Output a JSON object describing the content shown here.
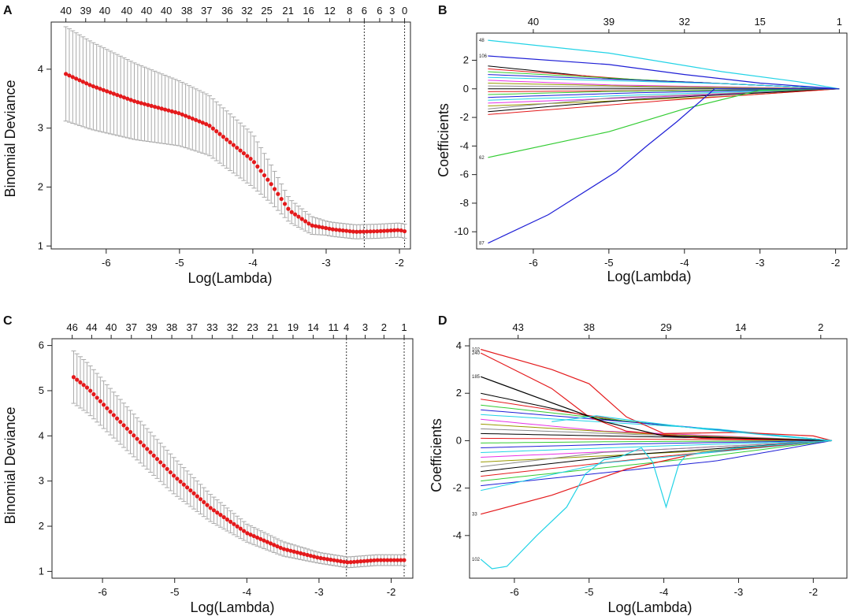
{
  "figure": {
    "colors": {
      "points": "#e41a1c",
      "errorbars": "#aaaaaa",
      "axis": "#222222",
      "path_palette": [
        "#000000",
        "#e41a1c",
        "#33cc33",
        "#1f1fd6",
        "#22d3e6",
        "#e633e6",
        "#999900",
        "#888888"
      ]
    }
  },
  "chart_data": [
    {
      "panel": "A",
      "type": "scatter",
      "subtype": "cv-deviance-with-errorbars",
      "xlabel": "Log(Lambda)",
      "ylabel": "Binomial Deviance",
      "xlim": [
        -6.75,
        -1.85
      ],
      "ylim": [
        0.95,
        4.8
      ],
      "xticks": [
        -6,
        -5,
        -4,
        -3,
        -2
      ],
      "yticks": [
        1,
        2,
        3,
        4
      ],
      "top_axis_labels": [
        "40",
        "39",
        "40",
        "40",
        "40",
        "40",
        "38",
        "37",
        "36",
        "32",
        "25",
        "21",
        "16",
        "12",
        "8",
        "6",
        "6",
        "3",
        "0"
      ],
      "top_axis_x": [
        -6.55,
        -6.28,
        -6.02,
        -5.72,
        -5.45,
        -5.18,
        -4.9,
        -4.63,
        -4.35,
        -4.08,
        -3.81,
        -3.52,
        -3.24,
        -2.95,
        -2.68,
        -2.48,
        -2.27,
        -2.1,
        -1.93
      ],
      "vlines": [
        -2.48,
        -1.93
      ],
      "curve_knots": [
        [
          -6.55,
          3.92
        ],
        [
          -6.2,
          3.72
        ],
        [
          -5.6,
          3.45
        ],
        [
          -5.0,
          3.25
        ],
        [
          -4.6,
          3.05
        ],
        [
          -4.3,
          2.75
        ],
        [
          -4.0,
          2.45
        ],
        [
          -3.75,
          2.05
        ],
        [
          -3.5,
          1.6
        ],
        [
          -3.2,
          1.35
        ],
        [
          -2.9,
          1.28
        ],
        [
          -2.6,
          1.24
        ],
        [
          -2.3,
          1.25
        ],
        [
          -2.0,
          1.27
        ],
        [
          -1.93,
          1.25
        ]
      ],
      "errorbar_knots": [
        [
          -6.55,
          0.8
        ],
        [
          -5.0,
          0.55
        ],
        [
          -4.0,
          0.45
        ],
        [
          -3.5,
          0.2
        ],
        [
          -3.0,
          0.12
        ],
        [
          -1.93,
          0.12
        ]
      ]
    },
    {
      "panel": "B",
      "type": "line",
      "subtype": "coefficient-paths",
      "xlabel": "Log(Lambda)",
      "ylabel": "Coefficients",
      "xlim": [
        -6.75,
        -1.85
      ],
      "ylim": [
        -11.2,
        3.9
      ],
      "xticks": [
        -6,
        -5,
        -4,
        -3,
        -2
      ],
      "yticks": [
        -10,
        -8,
        -6,
        -4,
        -2,
        0,
        2
      ],
      "top_axis_labels": [
        "40",
        "39",
        "32",
        "15",
        "1"
      ],
      "top_axis_x": [
        -6.0,
        -5.0,
        -4.0,
        -3.0,
        -1.95
      ],
      "path_end_x": -1.95,
      "named_paths": [
        {
          "label": "48",
          "color_index": 4,
          "knots": [
            [
              -6.6,
              3.4
            ],
            [
              -5.0,
              2.5
            ],
            [
              -3.5,
              1.2
            ],
            [
              -2.5,
              0.5
            ],
            [
              -1.95,
              0
            ]
          ]
        },
        {
          "label": "106",
          "color_index": 3,
          "knots": [
            [
              -6.6,
              2.3
            ],
            [
              -5.0,
              1.7
            ],
            [
              -4.0,
              1.0
            ],
            [
              -3.0,
              0.4
            ],
            [
              -1.95,
              0
            ]
          ]
        },
        {
          "label": "62",
          "color_index": 2,
          "knots": [
            [
              -6.6,
              -4.8
            ],
            [
              -5.0,
              -3.0
            ],
            [
              -4.0,
              -1.4
            ],
            [
              -3.0,
              -0.1
            ],
            [
              -1.95,
              0
            ]
          ]
        },
        {
          "label": "87",
          "color_index": 3,
          "knots": [
            [
              -6.6,
              -10.8
            ],
            [
              -5.8,
              -8.8
            ],
            [
              -4.9,
              -5.8
            ],
            [
              -4.5,
              -4.0
            ],
            [
              -4.1,
              -2.3
            ],
            [
              -3.6,
              0.0
            ],
            [
              -1.95,
              0
            ]
          ]
        }
      ],
      "bundle_start_values": [
        1.6,
        1.4,
        1.2,
        1.0,
        0.8,
        0.6,
        0.4,
        0.2,
        0.0,
        -0.2,
        -0.4,
        -0.6,
        -0.8,
        -1.0,
        -1.2,
        -1.4,
        -1.6,
        -1.8
      ]
    },
    {
      "panel": "C",
      "type": "scatter",
      "subtype": "cv-deviance-with-errorbars",
      "xlabel": "Log(Lambda)",
      "ylabel": "Binomial Deviance",
      "xlim": [
        -6.7,
        -1.7
      ],
      "ylim": [
        0.85,
        6.15
      ],
      "xticks": [
        -6,
        -5,
        -4,
        -3,
        -2
      ],
      "yticks": [
        1,
        2,
        3,
        4,
        5,
        6
      ],
      "top_axis_labels": [
        "46",
        "44",
        "40",
        "37",
        "39",
        "38",
        "37",
        "33",
        "32",
        "23",
        "21",
        "19",
        "14",
        "11",
        "4",
        "3",
        "2",
        "1"
      ],
      "top_axis_x": [
        -6.42,
        -6.15,
        -5.88,
        -5.6,
        -5.32,
        -5.04,
        -4.76,
        -4.48,
        -4.2,
        -3.92,
        -3.64,
        -3.36,
        -3.08,
        -2.8,
        -2.62,
        -2.36,
        -2.1,
        -1.82
      ],
      "vlines": [
        -2.62,
        -1.82
      ],
      "curve_knots": [
        [
          -6.4,
          5.3
        ],
        [
          -6.2,
          5.05
        ],
        [
          -5.9,
          4.55
        ],
        [
          -5.5,
          3.9
        ],
        [
          -5.0,
          3.1
        ],
        [
          -4.5,
          2.4
        ],
        [
          -4.0,
          1.85
        ],
        [
          -3.5,
          1.5
        ],
        [
          -3.0,
          1.3
        ],
        [
          -2.6,
          1.2
        ],
        [
          -2.2,
          1.25
        ],
        [
          -1.82,
          1.25
        ]
      ],
      "errorbar_knots": [
        [
          -6.4,
          0.58
        ],
        [
          -5.0,
          0.4
        ],
        [
          -4.0,
          0.2
        ],
        [
          -3.0,
          0.12
        ],
        [
          -1.82,
          0.12
        ]
      ]
    },
    {
      "panel": "D",
      "type": "line",
      "subtype": "coefficient-paths",
      "xlabel": "Log(Lambda)",
      "ylabel": "Coefficients",
      "xlim": [
        -6.6,
        -1.55
      ],
      "ylim": [
        -5.8,
        4.3
      ],
      "xticks": [
        -6,
        -5,
        -4,
        -3,
        -2
      ],
      "yticks": [
        -4,
        -2,
        0,
        2,
        4
      ],
      "top_axis_labels": [
        "43",
        "38",
        "29",
        "14",
        "2"
      ],
      "top_axis_x": [
        -5.95,
        -5.0,
        -3.97,
        -2.97,
        -1.9
      ],
      "path_end_x": -1.75,
      "named_paths": [
        {
          "label": "102",
          "color_index": 1,
          "knots": [
            [
              -6.45,
              3.85
            ],
            [
              -5.5,
              3.0
            ],
            [
              -5.0,
              2.4
            ],
            [
              -4.5,
              1.0
            ],
            [
              -4.0,
              0.3
            ],
            [
              -3.0,
              0.35
            ],
            [
              -2.0,
              0.2
            ],
            [
              -1.75,
              0
            ]
          ]
        },
        {
          "label": "240",
          "color_index": 1,
          "knots": [
            [
              -6.45,
              3.7
            ],
            [
              -5.5,
              2.2
            ],
            [
              -5.0,
              1.0
            ],
            [
              -4.5,
              0.4
            ],
            [
              -3.5,
              0.1
            ],
            [
              -1.75,
              0
            ]
          ]
        },
        {
          "label": "185",
          "color_index": 0,
          "knots": [
            [
              -6.45,
              2.7
            ],
            [
              -5.5,
              1.6
            ],
            [
              -4.8,
              0.8
            ],
            [
              -4.0,
              0.2
            ],
            [
              -1.75,
              0
            ]
          ]
        },
        {
          "label": "33",
          "color_index": 1,
          "knots": [
            [
              -6.45,
              -3.1
            ],
            [
              -5.5,
              -2.3
            ],
            [
              -4.5,
              -1.2
            ],
            [
              -3.5,
              -0.5
            ],
            [
              -1.75,
              0
            ]
          ]
        },
        {
          "label": "102",
          "color_index": 4,
          "knots": [
            [
              -6.45,
              -5.0
            ],
            [
              -6.3,
              -5.4
            ],
            [
              -6.1,
              -5.3
            ],
            [
              -5.7,
              -4.0
            ],
            [
              -5.3,
              -2.8
            ],
            [
              -5.05,
              -1.4
            ],
            [
              -4.8,
              -0.8
            ],
            [
              -4.6,
              -0.7
            ],
            [
              -4.3,
              -0.3
            ],
            [
              -4.15,
              -0.9
            ],
            [
              -3.97,
              -2.8
            ],
            [
              -3.8,
              -1.0
            ],
            [
              -3.7,
              -0.6
            ],
            [
              -3.0,
              -0.3
            ],
            [
              -1.75,
              0
            ]
          ]
        },
        {
          "label": "",
          "color_index": 4,
          "knots": [
            [
              -5.5,
              0.8
            ],
            [
              -4.9,
              1.05
            ],
            [
              -4.3,
              0.8
            ],
            [
              -3.5,
              0.5
            ],
            [
              -2.5,
              0.2
            ],
            [
              -1.75,
              0
            ]
          ]
        }
      ],
      "bundle_start_values": [
        2.0,
        1.75,
        1.5,
        1.3,
        1.1,
        0.9,
        0.7,
        0.5,
        0.3,
        0.1,
        -0.1,
        -0.3,
        -0.5,
        -0.7,
        -0.9,
        -1.1,
        -1.3,
        -1.5,
        -1.7,
        -1.9,
        -2.1
      ]
    }
  ],
  "panels": {
    "A": {
      "letter": "A",
      "xlabel": "Log(Lambda)",
      "ylabel": "Binomial Deviance"
    },
    "B": {
      "letter": "B",
      "xlabel": "Log(Lambda)",
      "ylabel": "Coefficients"
    },
    "C": {
      "letter": "C",
      "xlabel": "Log(Lambda)",
      "ylabel": "Binomial Deviance"
    },
    "D": {
      "letter": "D",
      "xlabel": "Log(Lambda)",
      "ylabel": "Coefficients"
    }
  }
}
